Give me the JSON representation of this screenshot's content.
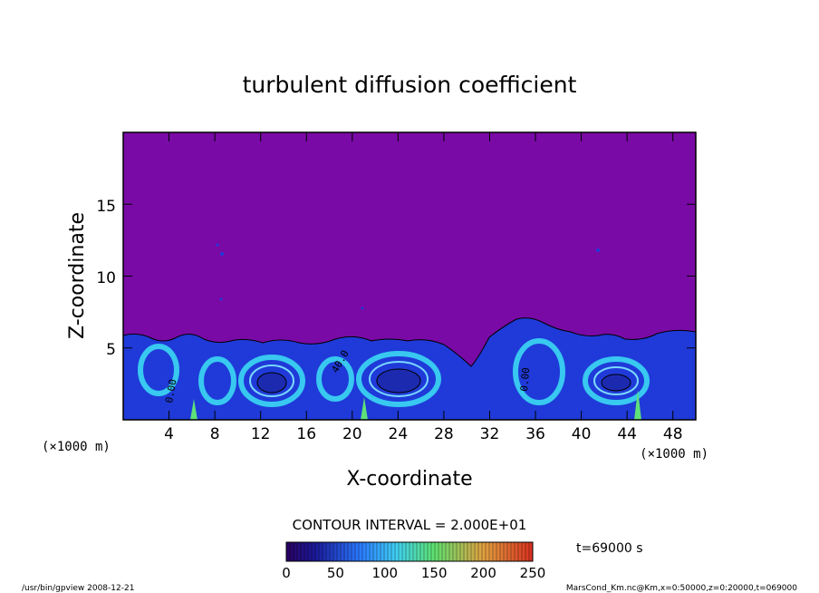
{
  "chart_data": {
    "type": "heatmap",
    "title": "turbulent diffusion coefficient",
    "xlabel": "X-coordinate",
    "ylabel": "Z-coordinate",
    "x_unit": "(×1000 m)",
    "y_unit": "(×1000 m)",
    "x_ticks": [
      "4",
      "8",
      "12",
      "16",
      "20",
      "24",
      "28",
      "32",
      "36",
      "40",
      "44",
      "48"
    ],
    "y_ticks": [
      "5",
      "10",
      "15"
    ],
    "xlim": [
      0,
      50
    ],
    "ylim": [
      0,
      20
    ],
    "grid": false,
    "contour_interval": "CONTOUR INTERVAL = 2.000E+01",
    "contour_labels": [
      "0.00",
      "40.0",
      "0.00"
    ],
    "time_label": "t=69000 s",
    "colorbar": {
      "ticks": [
        "0",
        "50",
        "100",
        "150",
        "200",
        "250"
      ],
      "range": [
        0,
        250
      ],
      "colors": [
        "#3a007a",
        "#1a1aa0",
        "#2a6aff",
        "#3cc8f0",
        "#5ee07a",
        "#e8a040",
        "#d0402a"
      ]
    },
    "background_color": "#7a0aa6",
    "turbulent_layer_top_approx": 6,
    "footer_left": "/usr/bin/gpview   2008-12-21",
    "footer_right": "MarsCond_Km.nc@Km,x=0:50000,z=0:20000,t=069000"
  }
}
